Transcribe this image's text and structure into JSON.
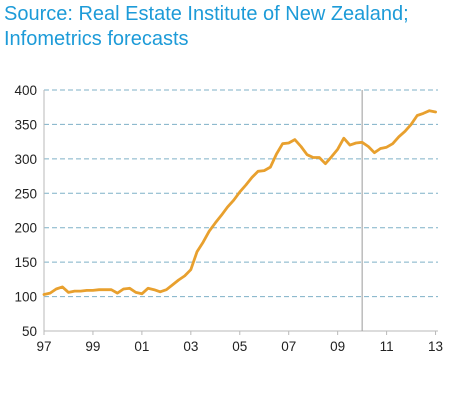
{
  "source_text": "Source: Real Estate Institute of New Zealand; Infometrics forecasts",
  "chart_data": {
    "type": "line",
    "title": "",
    "xlabel": "",
    "ylabel": "",
    "ylim": [
      50,
      400
    ],
    "yticks": [
      400,
      350,
      300,
      250,
      200,
      150,
      100,
      50
    ],
    "xlim": [
      1997,
      2013.1
    ],
    "xtick_labels": [
      "97",
      "99",
      "01",
      "03",
      "05",
      "07",
      "09",
      "11",
      "13"
    ],
    "xtick_years": [
      1997,
      1999,
      2001,
      2003,
      2005,
      2007,
      2009,
      2011,
      2013
    ],
    "forecast_start": 2010,
    "grid": "horizontal-dashed",
    "line_color": "#e8a02e",
    "series": [
      {
        "x": [
          1997.0,
          1997.25,
          1997.5,
          1997.75,
          1998.0,
          1998.25,
          1998.5,
          1998.75,
          1999.0,
          1999.25,
          1999.5,
          1999.75,
          2000.0,
          2000.25,
          2000.5,
          2000.75,
          2001.0,
          2001.25,
          2001.5,
          2001.75,
          2002.0,
          2002.25,
          2002.5,
          2002.75,
          2003.0,
          2003.25,
          2003.5,
          2003.75,
          2004.0,
          2004.25,
          2004.5,
          2004.75,
          2005.0,
          2005.25,
          2005.5,
          2005.75,
          2006.0,
          2006.25,
          2006.5,
          2006.75,
          2007.0,
          2007.25,
          2007.5,
          2007.75,
          2008.0,
          2008.25,
          2008.5,
          2008.75,
          2009.0,
          2009.25,
          2009.5,
          2009.75,
          2010.0,
          2010.25,
          2010.5,
          2010.75,
          2011.0,
          2011.25,
          2011.5,
          2011.75,
          2012.0,
          2012.25,
          2012.5,
          2012.75,
          2013.0
        ],
        "values": [
          103,
          105,
          111,
          114,
          106,
          108,
          108,
          109,
          109,
          110,
          110,
          110,
          105,
          111,
          112,
          106,
          104,
          112,
          110,
          107,
          110,
          117,
          124,
          130,
          139,
          165,
          179,
          195,
          207,
          218,
          230,
          240,
          252,
          262,
          273,
          282,
          283,
          288,
          307,
          322,
          323,
          328,
          318,
          306,
          302,
          302,
          293,
          303,
          314,
          330,
          320,
          323,
          324,
          318,
          309,
          315,
          317,
          322,
          332,
          340,
          350,
          363,
          366,
          370,
          368
        ]
      }
    ]
  }
}
